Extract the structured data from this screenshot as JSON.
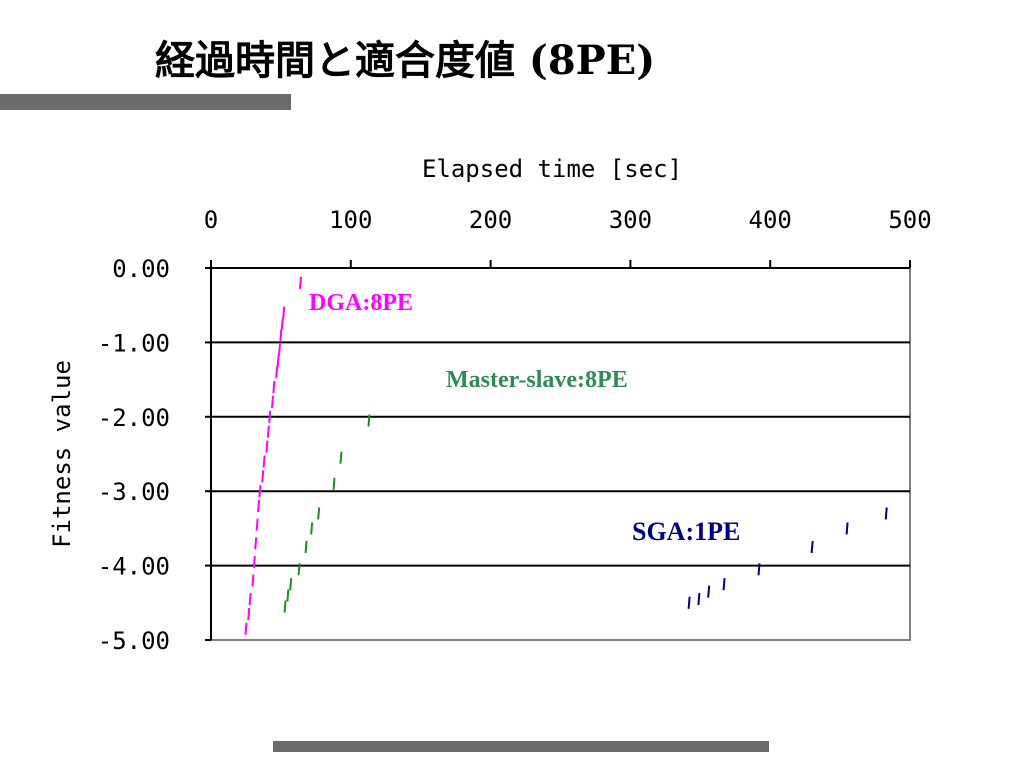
{
  "slide": {
    "title": "経過時間と適合度値 (8PE)",
    "accent_color": "#6b6b6b"
  },
  "chart_data": {
    "type": "scatter",
    "xlabel": "Elapsed time [sec]",
    "ylabel": "Fitness value",
    "xlim": [
      0,
      500
    ],
    "ylim": [
      -5,
      0
    ],
    "x_ticks": [
      "0",
      "100",
      "200",
      "300",
      "400",
      "500"
    ],
    "y_ticks": [
      "0.00",
      "-1.00",
      "-2.00",
      "-3.00",
      "-4.00",
      "-5.00"
    ],
    "grid": true,
    "x_axis_position": "top",
    "annotations": [
      {
        "text": "DGA:8PE",
        "color": "#ff00ff"
      },
      {
        "text": "Master-slave:8PE",
        "color": "#2e8b57"
      },
      {
        "text": "SGA:1PE",
        "color": "#000080"
      }
    ],
    "series": [
      {
        "color": "#ff00ff",
        "points": [
          [
            64,
            -0.2
          ],
          [
            52,
            -0.6
          ],
          [
            51,
            -0.75
          ],
          [
            50,
            -0.9
          ],
          [
            49,
            -1.1
          ],
          [
            48,
            -1.25
          ],
          [
            47,
            -1.4
          ],
          [
            45,
            -1.6
          ],
          [
            44,
            -1.8
          ],
          [
            42,
            -2.0
          ],
          [
            41,
            -2.2
          ],
          [
            40,
            -2.4
          ],
          [
            38,
            -2.6
          ],
          [
            37,
            -2.8
          ],
          [
            35,
            -3.0
          ],
          [
            34,
            -3.2
          ],
          [
            33,
            -3.45
          ],
          [
            32,
            -3.7
          ],
          [
            31,
            -3.95
          ],
          [
            30,
            -4.2
          ],
          [
            28,
            -4.45
          ],
          [
            27,
            -4.65
          ],
          [
            25,
            -4.85
          ]
        ]
      },
      {
        "color": "#228b22",
        "points": [
          [
            113,
            -2.05
          ],
          [
            93,
            -2.55
          ],
          [
            88,
            -2.9
          ],
          [
            77,
            -3.3
          ],
          [
            72,
            -3.5
          ],
          [
            68,
            -3.75
          ],
          [
            63,
            -4.05
          ],
          [
            57,
            -4.25
          ],
          [
            55,
            -4.4
          ],
          [
            53,
            -4.55
          ]
        ]
      },
      {
        "color": "#000080",
        "points": [
          [
            483,
            -3.3
          ],
          [
            455,
            -3.5
          ],
          [
            430,
            -3.75
          ],
          [
            392,
            -4.05
          ],
          [
            367,
            -4.25
          ],
          [
            356,
            -4.35
          ],
          [
            349,
            -4.45
          ],
          [
            342,
            -4.5
          ]
        ]
      }
    ]
  }
}
